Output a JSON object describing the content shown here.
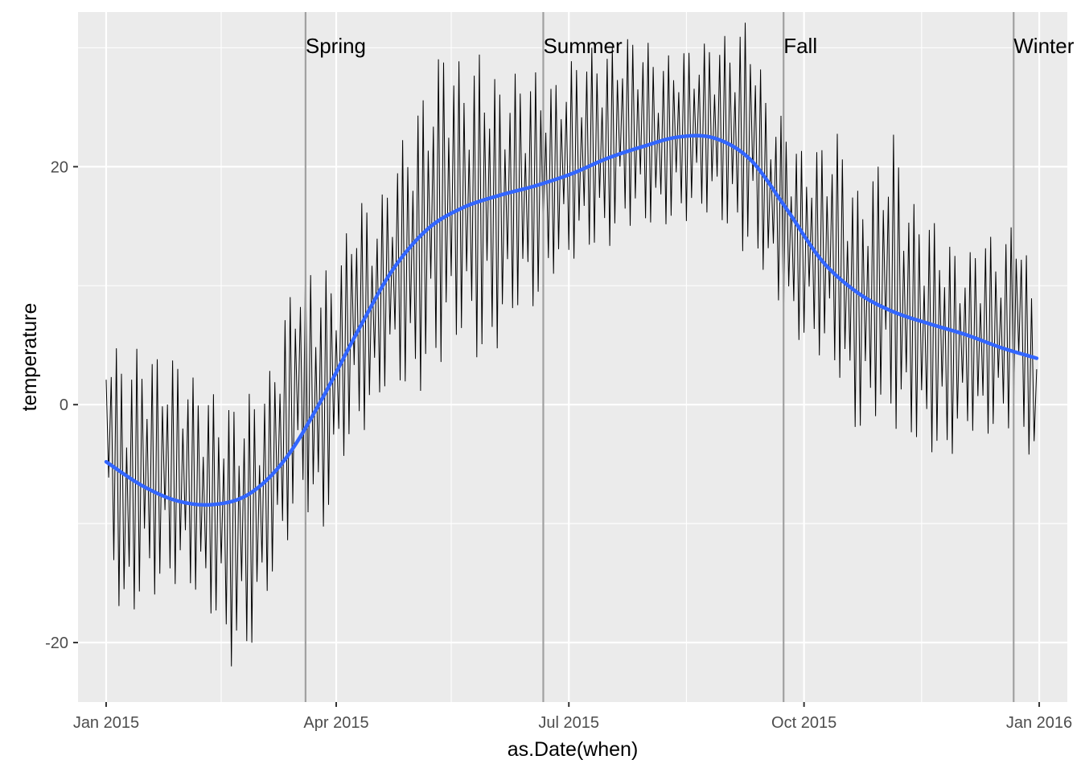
{
  "chart_data": {
    "type": "line",
    "xlabel": "as.Date(when)",
    "ylabel": "temperature",
    "x_range": [
      "2014-12-21",
      "2016-01-12"
    ],
    "ylim": [
      -25,
      33
    ],
    "grid": true,
    "x_ticks": [
      {
        "date": "2015-01-01",
        "label": "Jan 2015"
      },
      {
        "date": "2015-04-01",
        "label": "Apr 2015"
      },
      {
        "date": "2015-07-01",
        "label": "Jul 2015"
      },
      {
        "date": "2015-10-01",
        "label": "Oct 2015"
      },
      {
        "date": "2016-01-01",
        "label": "Jan 2016"
      }
    ],
    "x_minor_ticks": [
      "2015-02-15",
      "2015-05-16",
      "2015-08-16",
      "2015-11-16"
    ],
    "y_ticks": [
      {
        "value": -20,
        "label": "-20"
      },
      {
        "value": 0,
        "label": "0"
      },
      {
        "value": 20,
        "label": "20"
      }
    ],
    "y_minor_ticks": [
      -10,
      10,
      30
    ],
    "seasons": [
      {
        "name": "Spring",
        "date": "2015-03-20"
      },
      {
        "name": "Summer",
        "date": "2015-06-21"
      },
      {
        "name": "Fall",
        "date": "2015-09-23"
      },
      {
        "name": "Winter",
        "date": "2015-12-22"
      }
    ],
    "series": [
      {
        "style": "raw",
        "color": "#000000",
        "x": [
          "2015-01-01",
          "2015-01-08",
          "2015-01-15",
          "2015-01-22",
          "2015-01-29",
          "2015-02-05",
          "2015-02-12",
          "2015-02-19",
          "2015-02-26",
          "2015-03-05",
          "2015-03-12",
          "2015-03-19",
          "2015-03-26",
          "2015-04-02",
          "2015-04-09",
          "2015-04-16",
          "2015-04-23",
          "2015-04-30",
          "2015-05-07",
          "2015-05-14",
          "2015-05-21",
          "2015-05-28",
          "2015-06-04",
          "2015-06-11",
          "2015-06-18",
          "2015-06-25",
          "2015-07-02",
          "2015-07-09",
          "2015-07-16",
          "2015-07-23",
          "2015-07-30",
          "2015-08-06",
          "2015-08-13",
          "2015-08-20",
          "2015-08-27",
          "2015-09-03",
          "2015-09-10",
          "2015-09-17",
          "2015-09-24",
          "2015-10-01",
          "2015-10-08",
          "2015-10-15",
          "2015-10-22",
          "2015-10-29",
          "2015-11-05",
          "2015-11-12",
          "2015-11-19",
          "2015-11-26",
          "2015-12-03",
          "2015-12-10",
          "2015-12-17",
          "2015-12-24",
          "2015-12-31"
        ],
        "min": [
          -10,
          -20,
          -16,
          -16,
          -15,
          -16,
          -18,
          -22,
          -21,
          -16,
          -12,
          -8,
          -12,
          -5,
          -3,
          -1,
          3,
          0,
          2,
          4,
          6,
          3,
          5,
          8,
          8,
          11,
          12,
          13,
          13,
          15,
          15,
          15,
          15,
          16,
          16,
          14,
          12,
          11,
          6,
          5,
          4,
          2,
          -3,
          -1,
          -2,
          -3,
          -4,
          -5,
          -2,
          -3,
          -2,
          -2,
          -6
        ],
        "max": [
          6,
          4,
          5,
          4,
          4,
          2,
          1,
          0,
          1,
          2,
          8,
          13,
          11,
          12,
          18,
          16,
          20,
          24,
          27,
          31,
          28,
          30,
          27,
          28,
          28,
          27,
          29,
          30,
          30,
          31,
          31,
          29,
          30,
          30,
          31,
          31,
          33,
          25,
          24,
          21,
          22,
          23,
          18,
          20,
          23,
          17,
          16,
          14,
          12,
          15,
          13,
          17,
          7
        ]
      },
      {
        "style": "smooth",
        "color": "#3366ff",
        "x": [
          "2015-01-01",
          "2015-01-15",
          "2015-01-29",
          "2015-02-12",
          "2015-02-26",
          "2015-03-12",
          "2015-03-26",
          "2015-04-09",
          "2015-04-23",
          "2015-05-07",
          "2015-05-21",
          "2015-06-04",
          "2015-06-18",
          "2015-07-02",
          "2015-07-16",
          "2015-07-30",
          "2015-08-13",
          "2015-08-27",
          "2015-09-10",
          "2015-09-24",
          "2015-10-08",
          "2015-10-22",
          "2015-11-05",
          "2015-11-19",
          "2015-12-03",
          "2015-12-17",
          "2015-12-31"
        ],
        "y": [
          -4.8,
          -6.8,
          -8.1,
          -8.4,
          -7.5,
          -4.6,
          0.3,
          6.0,
          11.3,
          14.8,
          16.6,
          17.6,
          18.4,
          19.4,
          20.7,
          21.7,
          22.5,
          22.4,
          20.6,
          16.5,
          12.1,
          9.4,
          7.8,
          6.8,
          5.9,
          4.8,
          3.9
        ]
      }
    ]
  }
}
